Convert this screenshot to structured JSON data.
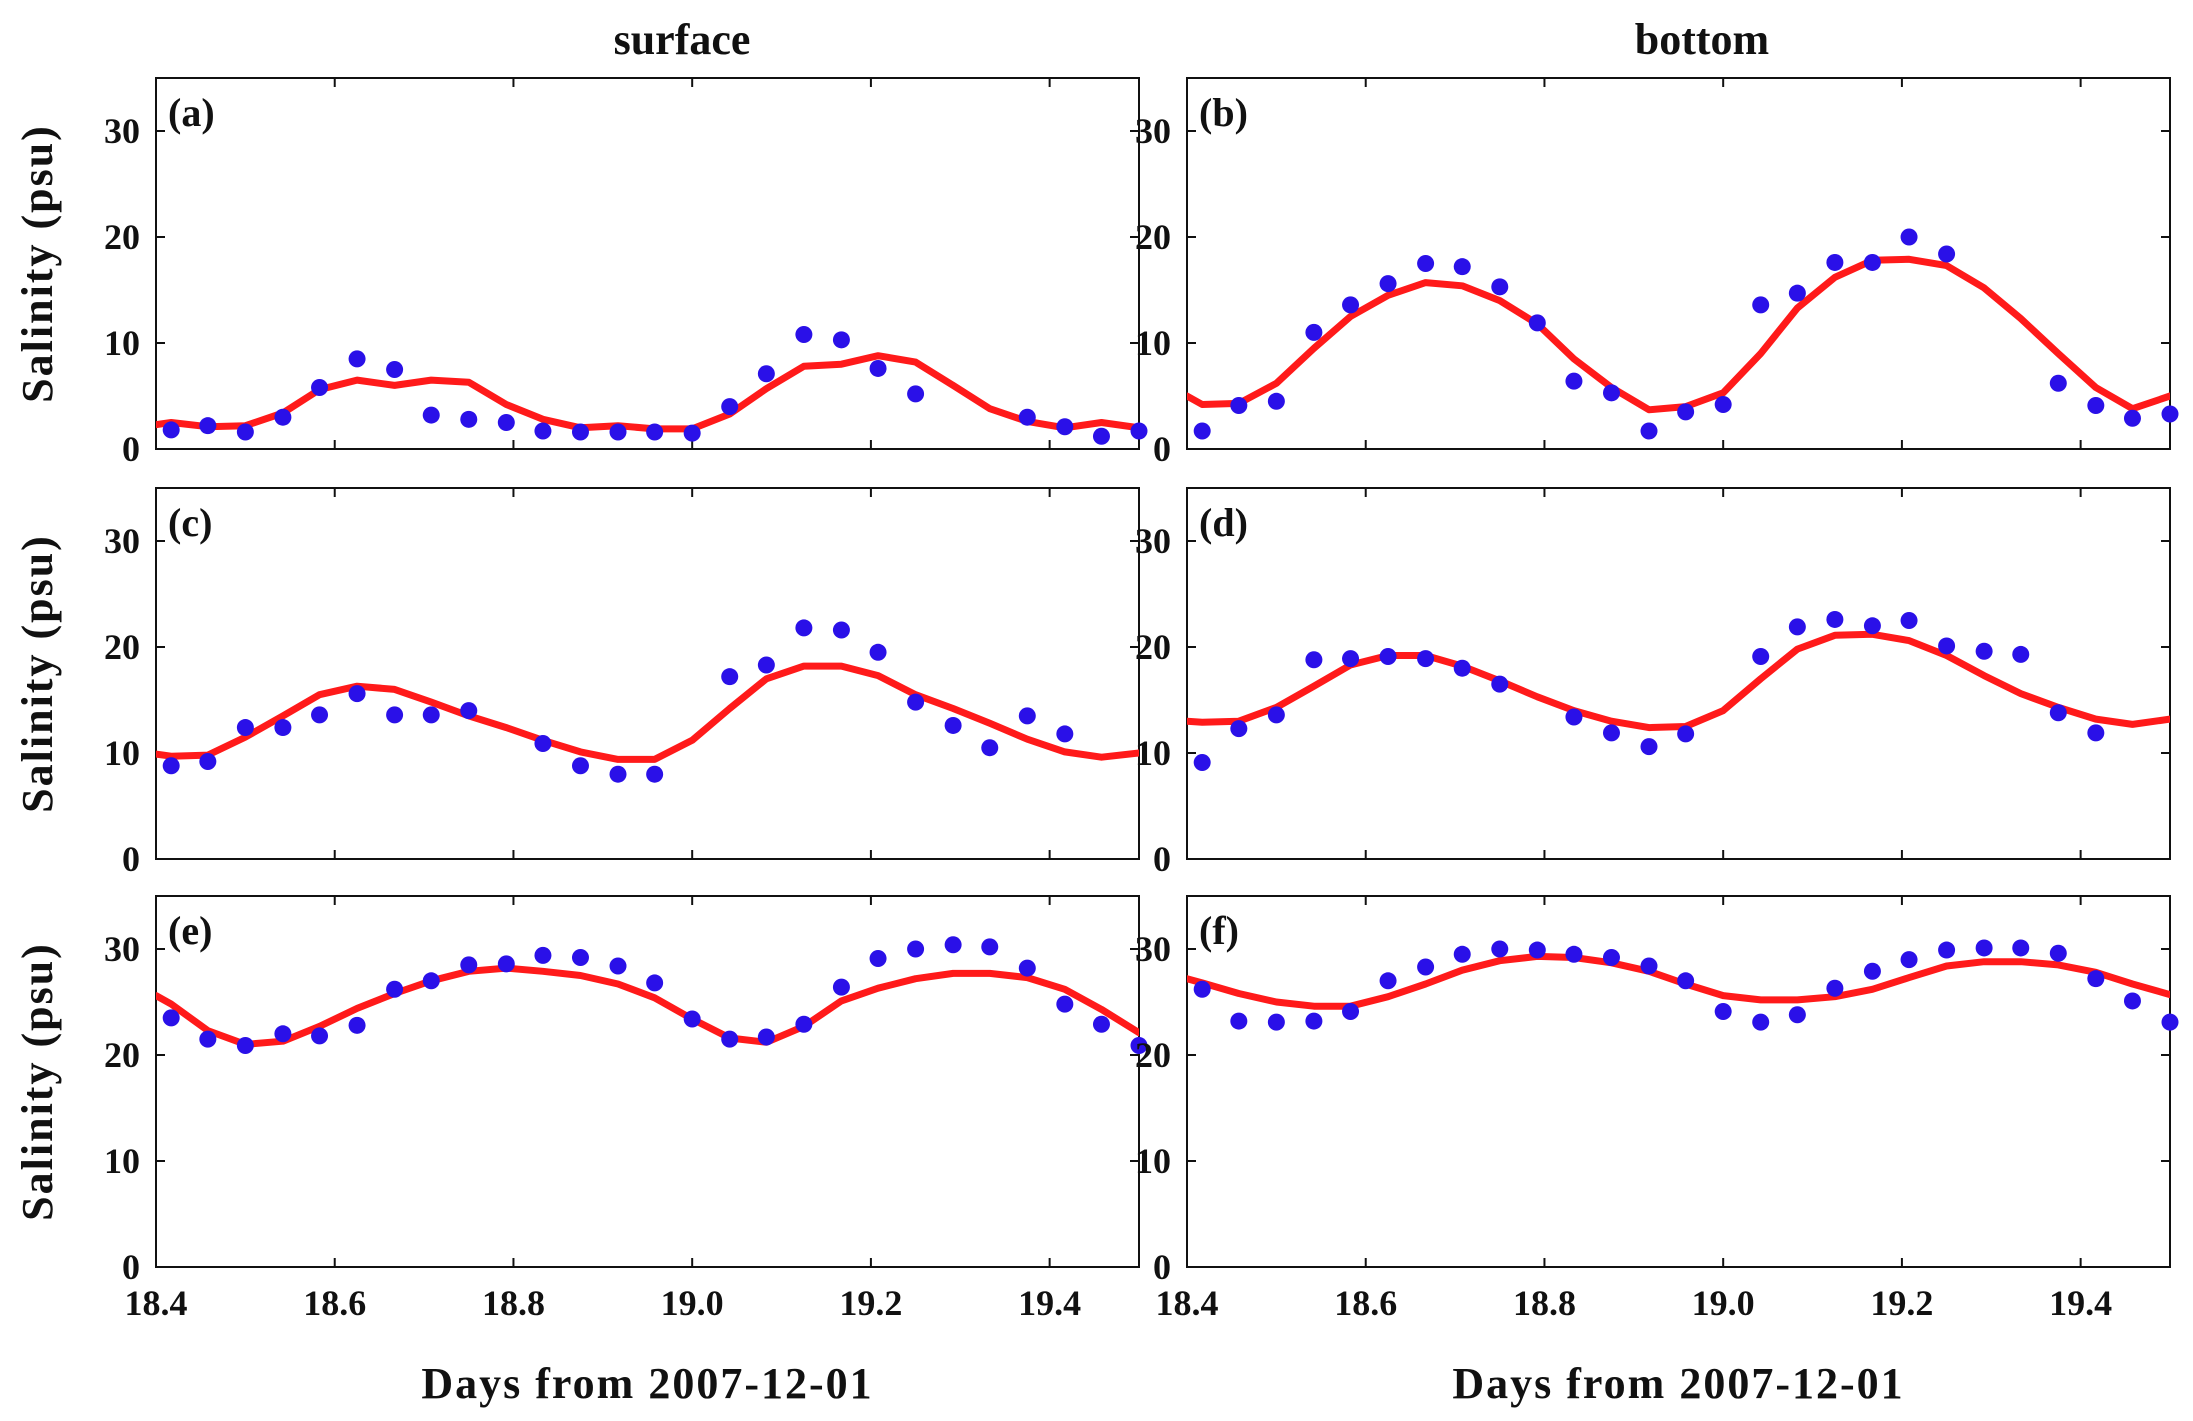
{
  "colors": {
    "model": "#ff1a1a",
    "observed": "#2a10e8",
    "axis": "#111111"
  },
  "column_titles": [
    "surface",
    "bottom"
  ],
  "chart_data": [
    {
      "type": "line",
      "panel": "(a)",
      "column": "surface",
      "xlabel": "Days from 2007-12-01",
      "ylabel": "Salinity (psu)",
      "xlim": [
        18.4,
        19.5
      ],
      "ylim": [
        0,
        35
      ],
      "xticks": [
        "18.4",
        "18.6",
        "18.8",
        "19.0",
        "19.2",
        "19.4"
      ],
      "yticks": [
        "0",
        "10",
        "20",
        "30"
      ],
      "series": [
        {
          "name": "model",
          "style": "line",
          "x": [
            18.4,
            18.417,
            18.458,
            18.5,
            18.542,
            18.583,
            18.625,
            18.667,
            18.708,
            18.75,
            18.792,
            18.833,
            18.875,
            18.917,
            18.958,
            19.0,
            19.042,
            19.083,
            19.125,
            19.167,
            19.208,
            19.25,
            19.292,
            19.333,
            19.375,
            19.417,
            19.458,
            19.5
          ],
          "y": [
            2.3,
            2.5,
            2.1,
            2.2,
            3.4,
            5.6,
            6.5,
            6.0,
            6.5,
            6.3,
            4.2,
            2.8,
            2.0,
            2.2,
            1.9,
            1.9,
            3.3,
            5.7,
            7.8,
            8.0,
            8.8,
            8.2,
            6.0,
            3.8,
            2.6,
            2.0,
            2.5,
            2.0
          ]
        },
        {
          "name": "observed",
          "style": "points",
          "x": [
            18.417,
            18.458,
            18.5,
            18.542,
            18.583,
            18.625,
            18.667,
            18.708,
            18.75,
            18.792,
            18.833,
            18.875,
            18.917,
            18.958,
            19.0,
            19.042,
            19.083,
            19.125,
            19.167,
            19.208,
            19.25,
            19.375,
            19.417,
            19.458,
            19.5
          ],
          "y": [
            1.8,
            2.2,
            1.6,
            3.0,
            5.8,
            8.5,
            7.5,
            3.2,
            2.8,
            2.5,
            1.7,
            1.6,
            1.6,
            1.6,
            1.5,
            4.0,
            7.1,
            10.8,
            10.3,
            7.6,
            5.2,
            3.0,
            2.1,
            1.2,
            1.7
          ]
        }
      ]
    },
    {
      "type": "line",
      "panel": "(b)",
      "column": "bottom",
      "xlabel": "Days from 2007-12-01",
      "ylabel": "Salinity (psu)",
      "xlim": [
        18.4,
        19.5
      ],
      "ylim": [
        0,
        35
      ],
      "xticks": [
        "18.4",
        "18.6",
        "18.8",
        "19.0",
        "19.2",
        "19.4"
      ],
      "yticks": [
        "0",
        "10",
        "20",
        "30"
      ],
      "series": [
        {
          "name": "model",
          "style": "line",
          "x": [
            18.4,
            18.417,
            18.458,
            18.5,
            18.542,
            18.583,
            18.625,
            18.667,
            18.708,
            18.75,
            18.792,
            18.833,
            18.875,
            18.917,
            18.958,
            19.0,
            19.042,
            19.083,
            19.125,
            19.167,
            19.208,
            19.25,
            19.292,
            19.333,
            19.375,
            19.417,
            19.458,
            19.5
          ],
          "y": [
            5.0,
            4.2,
            4.3,
            6.2,
            9.5,
            12.5,
            14.5,
            15.7,
            15.4,
            14.0,
            11.8,
            8.5,
            5.8,
            3.7,
            4.0,
            5.3,
            9.0,
            13.3,
            16.2,
            17.8,
            17.9,
            17.3,
            15.2,
            12.3,
            9.0,
            5.8,
            3.8,
            5.0
          ]
        },
        {
          "name": "observed",
          "style": "points",
          "x": [
            18.417,
            18.458,
            18.5,
            18.542,
            18.583,
            18.625,
            18.667,
            18.708,
            18.75,
            18.792,
            18.833,
            18.875,
            18.917,
            18.958,
            19.0,
            19.042,
            19.083,
            19.125,
            19.167,
            19.208,
            19.25,
            19.375,
            19.417,
            19.458,
            19.5
          ],
          "y": [
            1.7,
            4.1,
            4.5,
            11.0,
            13.6,
            15.6,
            17.5,
            17.2,
            15.3,
            11.9,
            6.4,
            5.3,
            1.7,
            3.5,
            4.2,
            13.6,
            14.7,
            17.6,
            17.6,
            20.0,
            18.4,
            6.2,
            4.1,
            2.9,
            3.3
          ]
        }
      ]
    },
    {
      "type": "line",
      "panel": "(c)",
      "column": "surface",
      "xlabel": "Days from 2007-12-01",
      "ylabel": "Salinity (psu)",
      "xlim": [
        18.4,
        19.5
      ],
      "ylim": [
        0,
        35
      ],
      "xticks": [
        "18.4",
        "18.6",
        "18.8",
        "19.0",
        "19.2",
        "19.4"
      ],
      "yticks": [
        "0",
        "10",
        "20",
        "30"
      ],
      "series": [
        {
          "name": "model",
          "style": "line",
          "x": [
            18.4,
            18.417,
            18.458,
            18.5,
            18.542,
            18.583,
            18.625,
            18.667,
            18.708,
            18.75,
            18.792,
            18.833,
            18.875,
            18.917,
            18.958,
            19.0,
            19.042,
            19.083,
            19.125,
            19.167,
            19.208,
            19.25,
            19.292,
            19.333,
            19.375,
            19.417,
            19.458,
            19.5
          ],
          "y": [
            9.9,
            9.7,
            9.8,
            11.5,
            13.5,
            15.5,
            16.3,
            16.0,
            14.8,
            13.5,
            12.4,
            11.2,
            10.1,
            9.4,
            9.4,
            11.2,
            14.2,
            17.0,
            18.2,
            18.2,
            17.3,
            15.5,
            14.2,
            12.8,
            11.3,
            10.1,
            9.6,
            10.0
          ]
        },
        {
          "name": "observed",
          "style": "points",
          "x": [
            18.417,
            18.458,
            18.5,
            18.542,
            18.583,
            18.625,
            18.667,
            18.708,
            18.75,
            18.833,
            18.875,
            18.917,
            18.958,
            19.042,
            19.083,
            19.125,
            19.167,
            19.208,
            19.25,
            19.292,
            19.333,
            19.375,
            19.417
          ],
          "y": [
            8.8,
            9.2,
            12.4,
            12.4,
            13.6,
            15.6,
            13.6,
            13.6,
            14.0,
            10.9,
            8.8,
            8.0,
            8.0,
            17.2,
            18.3,
            21.8,
            21.6,
            19.5,
            14.8,
            12.6,
            10.5,
            13.5,
            11.8
          ]
        }
      ]
    },
    {
      "type": "line",
      "panel": "(d)",
      "column": "bottom",
      "xlabel": "Days from 2007-12-01",
      "ylabel": "Salinity (psu)",
      "xlim": [
        18.4,
        19.5
      ],
      "ylim": [
        0,
        35
      ],
      "xticks": [
        "18.4",
        "18.6",
        "18.8",
        "19.0",
        "19.2",
        "19.4"
      ],
      "yticks": [
        "0",
        "10",
        "20",
        "30"
      ],
      "series": [
        {
          "name": "model",
          "style": "line",
          "x": [
            18.4,
            18.417,
            18.458,
            18.5,
            18.542,
            18.583,
            18.625,
            18.667,
            18.708,
            18.75,
            18.792,
            18.833,
            18.875,
            18.917,
            18.958,
            19.0,
            19.042,
            19.083,
            19.125,
            19.167,
            19.208,
            19.25,
            19.292,
            19.333,
            19.375,
            19.417,
            19.458,
            19.5
          ],
          "y": [
            13.0,
            12.9,
            13.0,
            14.3,
            16.3,
            18.3,
            19.2,
            19.2,
            18.2,
            16.8,
            15.3,
            14.0,
            13.0,
            12.4,
            12.5,
            14.0,
            17.0,
            19.8,
            21.1,
            21.2,
            20.6,
            19.2,
            17.3,
            15.6,
            14.3,
            13.2,
            12.7,
            13.2
          ]
        },
        {
          "name": "observed",
          "style": "points",
          "x": [
            18.417,
            18.458,
            18.5,
            18.542,
            18.583,
            18.625,
            18.667,
            18.708,
            18.75,
            18.833,
            18.875,
            18.917,
            18.958,
            19.042,
            19.083,
            19.125,
            19.167,
            19.208,
            19.25,
            19.292,
            19.333,
            19.375,
            19.417
          ],
          "y": [
            9.1,
            12.3,
            13.6,
            18.8,
            18.9,
            19.1,
            18.9,
            18.0,
            16.5,
            13.4,
            11.9,
            10.6,
            11.8,
            19.1,
            21.9,
            22.6,
            22.0,
            22.5,
            20.1,
            19.6,
            19.3,
            13.8,
            11.9
          ]
        }
      ]
    },
    {
      "type": "line",
      "panel": "(e)",
      "column": "surface",
      "xlabel": "Days from 2007-12-01",
      "ylabel": "Salinity (psu)",
      "xlim": [
        18.4,
        19.5
      ],
      "ylim": [
        0,
        35
      ],
      "xticks": [
        "18.4",
        "18.6",
        "18.8",
        "19.0",
        "19.2",
        "19.4"
      ],
      "yticks": [
        "0",
        "10",
        "20",
        "30"
      ],
      "series": [
        {
          "name": "model",
          "style": "line",
          "x": [
            18.4,
            18.417,
            18.458,
            18.5,
            18.542,
            18.583,
            18.625,
            18.667,
            18.708,
            18.75,
            18.792,
            18.833,
            18.875,
            18.917,
            18.958,
            19.0,
            19.042,
            19.083,
            19.125,
            19.167,
            19.208,
            19.25,
            19.292,
            19.333,
            19.375,
            19.417,
            19.458,
            19.5
          ],
          "y": [
            25.6,
            24.8,
            22.3,
            21.0,
            21.3,
            22.7,
            24.4,
            25.8,
            27.0,
            27.9,
            28.2,
            27.9,
            27.5,
            26.7,
            25.4,
            23.4,
            21.6,
            21.2,
            22.7,
            25.1,
            26.3,
            27.2,
            27.7,
            27.7,
            27.3,
            26.2,
            24.3,
            22.1
          ]
        },
        {
          "name": "observed",
          "style": "points",
          "x": [
            18.417,
            18.458,
            18.5,
            18.542,
            18.583,
            18.625,
            18.667,
            18.708,
            18.75,
            18.792,
            18.833,
            18.875,
            18.917,
            18.958,
            19.0,
            19.042,
            19.083,
            19.125,
            19.167,
            19.208,
            19.25,
            19.292,
            19.333,
            19.375,
            19.417,
            19.458,
            19.5
          ],
          "y": [
            23.5,
            21.5,
            20.9,
            22.0,
            21.8,
            22.8,
            26.2,
            27.0,
            28.5,
            28.6,
            29.4,
            29.2,
            28.4,
            26.8,
            23.4,
            21.5,
            21.7,
            22.9,
            26.4,
            29.1,
            30.0,
            30.4,
            30.2,
            28.2,
            24.8,
            22.9,
            20.9
          ]
        }
      ]
    },
    {
      "type": "line",
      "panel": "(f)",
      "column": "bottom",
      "xlabel": "Days from 2007-12-01",
      "ylabel": "Salinity (psu)",
      "xlim": [
        18.4,
        19.5
      ],
      "ylim": [
        0,
        35
      ],
      "xticks": [
        "18.4",
        "18.6",
        "18.8",
        "19.0",
        "19.2",
        "19.4"
      ],
      "yticks": [
        "0",
        "10",
        "20",
        "30"
      ],
      "series": [
        {
          "name": "model",
          "style": "line",
          "x": [
            18.4,
            18.417,
            18.458,
            18.5,
            18.542,
            18.583,
            18.625,
            18.667,
            18.708,
            18.75,
            18.792,
            18.833,
            18.875,
            18.917,
            18.958,
            19.0,
            19.042,
            19.083,
            19.125,
            19.167,
            19.208,
            19.25,
            19.292,
            19.333,
            19.375,
            19.417,
            19.458,
            19.5
          ],
          "y": [
            27.2,
            26.8,
            25.8,
            25.0,
            24.6,
            24.6,
            25.5,
            26.7,
            28.0,
            28.9,
            29.3,
            29.2,
            28.7,
            27.9,
            26.7,
            25.6,
            25.2,
            25.2,
            25.5,
            26.2,
            27.3,
            28.4,
            28.8,
            28.8,
            28.5,
            27.8,
            26.7,
            25.7
          ]
        },
        {
          "name": "observed",
          "style": "points",
          "x": [
            18.417,
            18.458,
            18.5,
            18.542,
            18.583,
            18.625,
            18.667,
            18.708,
            18.75,
            18.792,
            18.833,
            18.875,
            18.917,
            18.958,
            19.0,
            19.042,
            19.083,
            19.125,
            19.167,
            19.208,
            19.25,
            19.292,
            19.333,
            19.375,
            19.417,
            19.458,
            19.5
          ],
          "y": [
            26.2,
            23.2,
            23.1,
            23.2,
            24.1,
            27.0,
            28.3,
            29.5,
            30.0,
            29.9,
            29.5,
            29.2,
            28.4,
            27.0,
            24.1,
            23.1,
            23.8,
            26.3,
            27.9,
            29.0,
            29.9,
            30.1,
            30.1,
            29.6,
            27.2,
            25.1,
            23.1
          ]
        }
      ]
    }
  ]
}
